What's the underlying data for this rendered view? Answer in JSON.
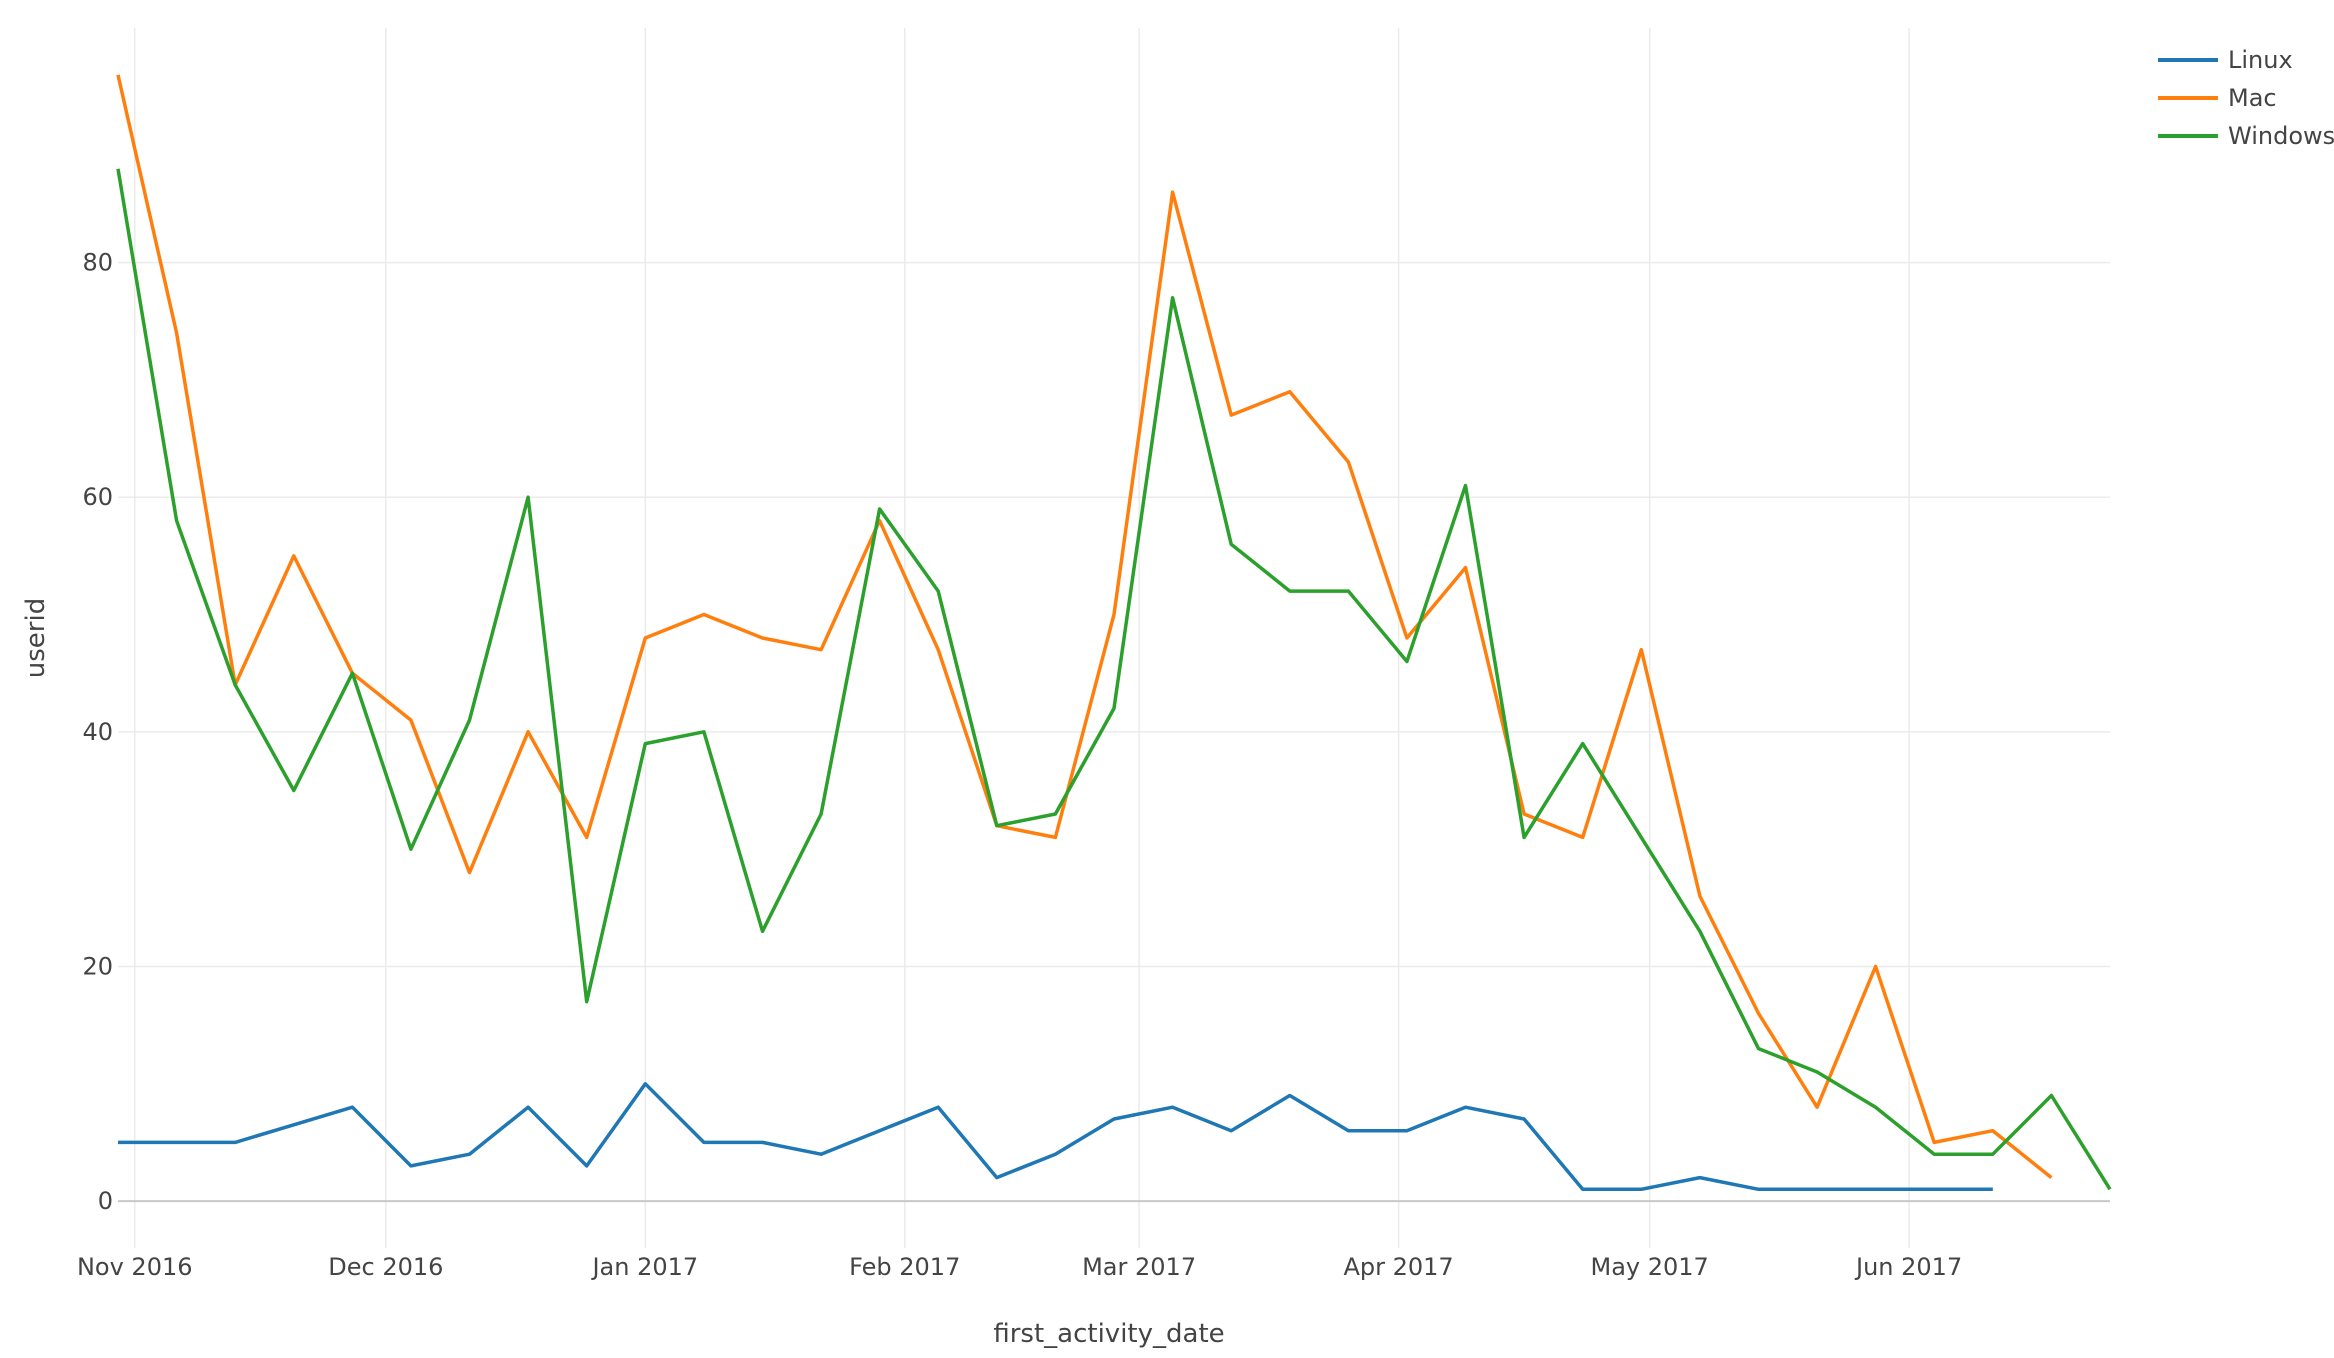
{
  "chart_data": {
    "type": "line",
    "xlabel": "first_activity_date",
    "ylabel": "userid",
    "x_ticks": [
      {
        "date": "2016-11-01",
        "label": "Nov 2016"
      },
      {
        "date": "2016-12-01",
        "label": "Dec 2016"
      },
      {
        "date": "2017-01-01",
        "label": "Jan 2017"
      },
      {
        "date": "2017-02-01",
        "label": "Feb 2017"
      },
      {
        "date": "2017-03-01",
        "label": "Mar 2017"
      },
      {
        "date": "2017-04-01",
        "label": "Apr 2017"
      },
      {
        "date": "2017-05-01",
        "label": "May 2017"
      },
      {
        "date": "2017-06-01",
        "label": "Jun 2017"
      }
    ],
    "y_ticks": [
      0,
      20,
      40,
      60,
      80
    ],
    "xlim": [
      "2016-10-30",
      "2017-06-25"
    ],
    "ylim": [
      -4,
      100
    ],
    "grid": true,
    "legend_position": "top-right",
    "series": [
      {
        "name": "Linux",
        "color": "#1f77b4",
        "x": [
          "2016-10-30",
          "2016-11-06",
          "2016-11-13",
          "2016-11-20",
          "2016-11-27",
          "2016-12-04",
          "2016-12-11",
          "2016-12-18",
          "2016-12-25",
          "2017-01-01",
          "2017-01-08",
          "2017-01-15",
          "2017-01-22",
          "2017-01-29",
          "2017-02-05",
          "2017-02-12",
          "2017-02-19",
          "2017-02-26",
          "2017-03-05",
          "2017-03-12",
          "2017-03-19",
          "2017-03-26",
          "2017-04-02",
          "2017-04-09",
          "2017-04-16",
          "2017-04-23",
          "2017-04-30",
          "2017-05-07",
          "2017-05-14",
          "2017-05-21",
          "2017-05-28",
          "2017-06-04",
          "2017-06-11"
        ],
        "y": [
          5,
          5,
          5,
          6.5,
          8,
          3,
          4,
          8,
          3,
          10,
          5,
          5,
          4,
          6,
          8,
          2,
          4,
          7,
          8,
          6,
          9,
          6,
          6,
          8,
          7,
          1,
          1,
          2,
          1,
          1,
          1,
          1,
          1
        ]
      },
      {
        "name": "Mac",
        "color": "#ff7f0e",
        "x": [
          "2016-10-30",
          "2016-11-06",
          "2016-11-13",
          "2016-11-20",
          "2016-11-27",
          "2016-12-04",
          "2016-12-11",
          "2016-12-18",
          "2016-12-25",
          "2017-01-01",
          "2017-01-08",
          "2017-01-15",
          "2017-01-22",
          "2017-01-29",
          "2017-02-05",
          "2017-02-12",
          "2017-02-19",
          "2017-02-26",
          "2017-03-05",
          "2017-03-12",
          "2017-03-19",
          "2017-03-26",
          "2017-04-02",
          "2017-04-09",
          "2017-04-16",
          "2017-04-23",
          "2017-04-30",
          "2017-05-07",
          "2017-05-14",
          "2017-05-21",
          "2017-05-28",
          "2017-06-04",
          "2017-06-11",
          "2017-06-18"
        ],
        "y": [
          96,
          74,
          44,
          55,
          45,
          41,
          28,
          40,
          31,
          48,
          50,
          48,
          47,
          58,
          47,
          32,
          31,
          50,
          86,
          67,
          69,
          63,
          48,
          54,
          33,
          31,
          47,
          26,
          16,
          8,
          20,
          5,
          6,
          2
        ]
      },
      {
        "name": "Windows",
        "color": "#2ca02c",
        "x": [
          "2016-10-30",
          "2016-11-06",
          "2016-11-13",
          "2016-11-20",
          "2016-11-27",
          "2016-12-04",
          "2016-12-11",
          "2016-12-18",
          "2016-12-25",
          "2017-01-01",
          "2017-01-08",
          "2017-01-15",
          "2017-01-22",
          "2017-01-29",
          "2017-02-05",
          "2017-02-12",
          "2017-02-19",
          "2017-02-26",
          "2017-03-05",
          "2017-03-12",
          "2017-03-19",
          "2017-03-26",
          "2017-04-02",
          "2017-04-09",
          "2017-04-16",
          "2017-04-23",
          "2017-04-30",
          "2017-05-07",
          "2017-05-14",
          "2017-05-21",
          "2017-05-28",
          "2017-06-04",
          "2017-06-11",
          "2017-06-18",
          "2017-06-25"
        ],
        "y": [
          88,
          58,
          44,
          35,
          45,
          30,
          41,
          60,
          17,
          39,
          40,
          23,
          33,
          59,
          52,
          32,
          33,
          42,
          77,
          56,
          52,
          52,
          46,
          61,
          31,
          39,
          31,
          23,
          13,
          11,
          8,
          4,
          4,
          9,
          1
        ]
      }
    ]
  }
}
